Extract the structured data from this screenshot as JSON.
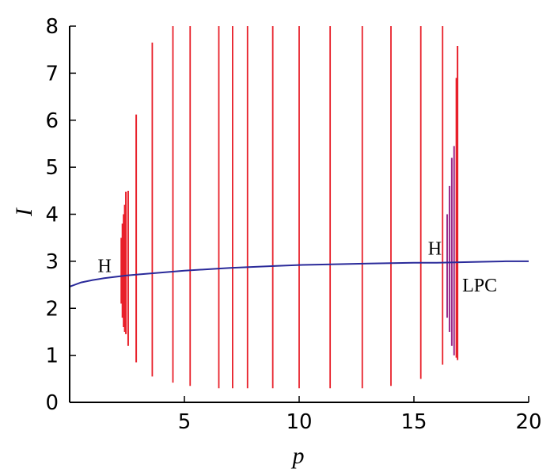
{
  "chart_data": {
    "type": "line",
    "title": "",
    "xlabel": "p",
    "ylabel": "I",
    "xlim": [
      0,
      20
    ],
    "ylim": [
      0,
      8
    ],
    "xticks": [
      "5",
      "10",
      "15",
      "20"
    ],
    "yticks": [
      "0",
      "1",
      "2",
      "3",
      "4",
      "5",
      "6",
      "7",
      "8"
    ],
    "grid": false,
    "colors": {
      "equilibrium": "#2a2a9a",
      "cycle": "#e8202a",
      "cycle_dense": "#9a2a8a"
    },
    "equilibrium_curve": {
      "x": [
        0,
        0.5,
        1,
        1.5,
        2,
        2.5,
        3,
        4,
        5,
        6,
        7,
        8,
        9,
        10,
        11,
        12,
        13,
        14,
        15,
        16,
        17,
        18,
        19,
        20
      ],
      "y": [
        2.46,
        2.55,
        2.6,
        2.64,
        2.67,
        2.7,
        2.72,
        2.76,
        2.8,
        2.83,
        2.86,
        2.88,
        2.9,
        2.92,
        2.93,
        2.94,
        2.95,
        2.96,
        2.97,
        2.97,
        2.98,
        2.99,
        3.0,
        3.0
      ]
    },
    "limit_cycle_amplitudes": [
      {
        "p": 2.25,
        "min": 2.1,
        "max": 3.5
      },
      {
        "p": 2.3,
        "min": 1.8,
        "max": 3.8
      },
      {
        "p": 2.35,
        "min": 1.6,
        "max": 4.0
      },
      {
        "p": 2.4,
        "min": 1.5,
        "max": 4.2
      },
      {
        "p": 2.45,
        "min": 1.45,
        "max": 4.48
      },
      {
        "p": 2.55,
        "min": 1.2,
        "max": 4.5
      },
      {
        "p": 2.9,
        "min": 0.85,
        "max": 6.12
      },
      {
        "p": 3.6,
        "min": 0.55,
        "max": 7.65
      },
      {
        "p": 4.5,
        "min": 0.42,
        "max": 8.0
      },
      {
        "p": 5.25,
        "min": 0.35,
        "max": 8.0
      },
      {
        "p": 6.5,
        "min": 0.3,
        "max": 8.0
      },
      {
        "p": 7.1,
        "min": 0.3,
        "max": 8.0
      },
      {
        "p": 7.75,
        "min": 0.3,
        "max": 8.0
      },
      {
        "p": 8.85,
        "min": 0.3,
        "max": 8.0
      },
      {
        "p": 10.0,
        "min": 0.3,
        "max": 8.0
      },
      {
        "p": 11.35,
        "min": 0.3,
        "max": 8.0
      },
      {
        "p": 12.75,
        "min": 0.3,
        "max": 8.0
      },
      {
        "p": 14.0,
        "min": 0.35,
        "max": 8.0
      },
      {
        "p": 15.3,
        "min": 0.5,
        "max": 8.0
      },
      {
        "p": 16.25,
        "min": 0.8,
        "max": 8.0
      },
      {
        "p": 16.45,
        "min": 1.8,
        "max": 4.0
      },
      {
        "p": 16.55,
        "min": 1.5,
        "max": 4.6
      },
      {
        "p": 16.65,
        "min": 1.2,
        "max": 5.2
      },
      {
        "p": 16.75,
        "min": 1.0,
        "max": 5.45
      },
      {
        "p": 16.85,
        "min": 0.95,
        "max": 6.9
      },
      {
        "p": 16.9,
        "min": 0.9,
        "max": 7.58
      }
    ],
    "annotations": [
      {
        "text": "H",
        "x": 2.1,
        "y": 2.7
      },
      {
        "text": "H",
        "x": 16.35,
        "y": 2.97
      },
      {
        "text": "LPC",
        "x": 16.9,
        "y": 2.9
      }
    ]
  }
}
